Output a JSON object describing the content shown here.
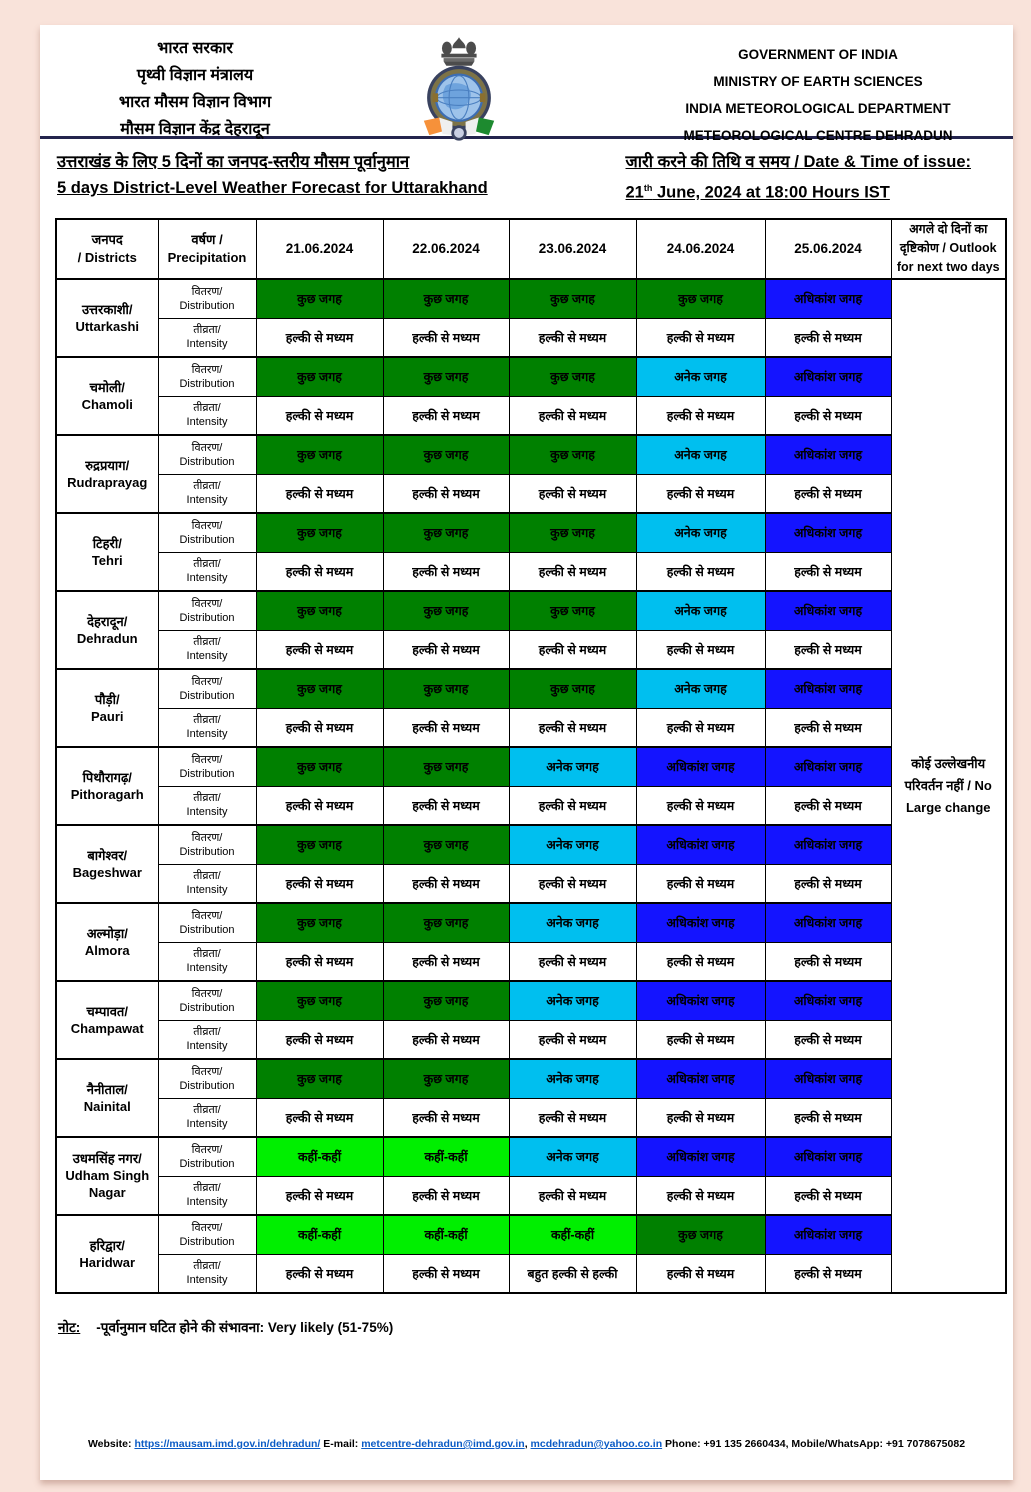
{
  "colors": {
    "page_background": "#f9e3da",
    "paper": "#ffffff",
    "table_border": "#000000",
    "header_rule": "#23244d",
    "link": "#0b5bc5",
    "distribution_some_places": "#008000",
    "distribution_isolated": "#00ef00",
    "distribution_many_places": "#00bfef",
    "distribution_most_places": "#1414ff"
  },
  "header": {
    "left_lines": [
      "भारत सरकार",
      "पृथ्वी विज्ञान मंत्रालय",
      "भारत मौसम विज्ञान विभाग",
      "मौसम विज्ञान केंद्र देहरादून"
    ],
    "right_lines": [
      "GOVERNMENT OF INDIA",
      "MINISTRY OF EARTH SCIENCES",
      "INDIA METEOROLOGICAL DEPARTMENT",
      "METEOROLOGICAL CENTRE DEHRADUN"
    ],
    "logo": "imd-emblem-logo"
  },
  "title": {
    "hindi": "उत्तराखंड के लिए 5 दिनों का जनपद-स्तरीय मौसम पूर्वानुमान",
    "english": "5 days District-Level Weather Forecast for Uttarakhand"
  },
  "issue": {
    "label": "जारी करने की तिथि व समय / Date & Time of issue:",
    "day": "21",
    "day_suffix": "th",
    "rest": " June, 2024 at 18:00 Hours IST"
  },
  "table": {
    "headers": {
      "districts_hi": "जनपद",
      "districts_en": "/ Districts",
      "precipitation_hi": "वर्षण /",
      "precipitation_en": "Precipitation",
      "dates": [
        "21.06.2024",
        "22.06.2024",
        "23.06.2024",
        "24.06.2024",
        "25.06.2024"
      ],
      "outlook": "अगले दो दिनों का दृष्टिकोण / Outlook for next two days"
    },
    "row_labels": {
      "distribution_hi": "वितरण/",
      "distribution_en": "Distribution",
      "intensity_hi": "तीव्रता/",
      "intensity_en": "Intensity"
    },
    "categories": {
      "some": {
        "label": "कुछ जगह",
        "color": "#008000"
      },
      "isolated": {
        "label": "कहीं-कहीं",
        "color": "#00ef00"
      },
      "many": {
        "label": "अनेक जगह",
        "color": "#00bfef"
      },
      "most": {
        "label": "अधिकांश जगह",
        "color": "#1414ff"
      }
    },
    "outlook_note": "कोई उल्लेखनीय परिवर्तन नहीं / No Large change",
    "rows": [
      {
        "hi": "उत्तरकाशी/",
        "en": "Uttarkashi",
        "distribution": [
          "some",
          "some",
          "some",
          "some",
          "most"
        ],
        "intensity": [
          "हल्की से मध्यम",
          "हल्की से मध्यम",
          "हल्की से मध्यम",
          "हल्की से मध्यम",
          "हल्की से मध्यम"
        ]
      },
      {
        "hi": "चमोली/",
        "en": "Chamoli",
        "distribution": [
          "some",
          "some",
          "some",
          "many",
          "most"
        ],
        "intensity": [
          "हल्की से मध्यम",
          "हल्की से मध्यम",
          "हल्की से मध्यम",
          "हल्की से मध्यम",
          "हल्की से मध्यम"
        ]
      },
      {
        "hi": "रुद्रप्रयाग/",
        "en": "Rudraprayag",
        "distribution": [
          "some",
          "some",
          "some",
          "many",
          "most"
        ],
        "intensity": [
          "हल्की से मध्यम",
          "हल्की से मध्यम",
          "हल्की से मध्यम",
          "हल्की से मध्यम",
          "हल्की से मध्यम"
        ]
      },
      {
        "hi": "टिहरी/",
        "en": "Tehri",
        "distribution": [
          "some",
          "some",
          "some",
          "many",
          "most"
        ],
        "intensity": [
          "हल्की से मध्यम",
          "हल्की से मध्यम",
          "हल्की से मध्यम",
          "हल्की से मध्यम",
          "हल्की से मध्यम"
        ]
      },
      {
        "hi": "देहरादून/",
        "en": "Dehradun",
        "distribution": [
          "some",
          "some",
          "some",
          "many",
          "most"
        ],
        "intensity": [
          "हल्की से मध्यम",
          "हल्की से मध्यम",
          "हल्की से मध्यम",
          "हल्की से मध्यम",
          "हल्की से मध्यम"
        ]
      },
      {
        "hi": "पौड़ी/",
        "en": "Pauri",
        "distribution": [
          "some",
          "some",
          "some",
          "many",
          "most"
        ],
        "intensity": [
          "हल्की से मध्यम",
          "हल्की से मध्यम",
          "हल्की से मध्यम",
          "हल्की से मध्यम",
          "हल्की से मध्यम"
        ]
      },
      {
        "hi": "पिथौरागढ़/",
        "en": "Pithoragarh",
        "distribution": [
          "some",
          "some",
          "many",
          "most",
          "most"
        ],
        "intensity": [
          "हल्की से मध्यम",
          "हल्की से मध्यम",
          "हल्की से मध्यम",
          "हल्की से मध्यम",
          "हल्की से मध्यम"
        ]
      },
      {
        "hi": "बागेश्वर/",
        "en": "Bageshwar",
        "distribution": [
          "some",
          "some",
          "many",
          "most",
          "most"
        ],
        "intensity": [
          "हल्की से मध्यम",
          "हल्की से मध्यम",
          "हल्की से मध्यम",
          "हल्की से मध्यम",
          "हल्की से मध्यम"
        ]
      },
      {
        "hi": "अल्मोड़ा/",
        "en": "Almora",
        "distribution": [
          "some",
          "some",
          "many",
          "most",
          "most"
        ],
        "intensity": [
          "हल्की से मध्यम",
          "हल्की से मध्यम",
          "हल्की से मध्यम",
          "हल्की से मध्यम",
          "हल्की से मध्यम"
        ]
      },
      {
        "hi": "चम्पावत/",
        "en": "Champawat",
        "distribution": [
          "some",
          "some",
          "many",
          "most",
          "most"
        ],
        "intensity": [
          "हल्की से मध्यम",
          "हल्की से मध्यम",
          "हल्की से मध्यम",
          "हल्की से मध्यम",
          "हल्की से मध्यम"
        ]
      },
      {
        "hi": "नैनीताल/",
        "en": "Nainital",
        "distribution": [
          "some",
          "some",
          "many",
          "most",
          "most"
        ],
        "intensity": [
          "हल्की से मध्यम",
          "हल्की से मध्यम",
          "हल्की से मध्यम",
          "हल्की से मध्यम",
          "हल्की से मध्यम"
        ]
      },
      {
        "hi": "उधमसिंह नगर/",
        "en": "Udham Singh Nagar",
        "distribution": [
          "isolated",
          "isolated",
          "many",
          "most",
          "most"
        ],
        "intensity": [
          "हल्की से मध्यम",
          "हल्की से मध्यम",
          "हल्की से मध्यम",
          "हल्की से मध्यम",
          "हल्की से मध्यम"
        ]
      },
      {
        "hi": "हरिद्वार/",
        "en": "Haridwar",
        "distribution": [
          "isolated",
          "isolated",
          "isolated",
          "some",
          "most"
        ],
        "intensity": [
          "हल्की से मध्यम",
          "हल्की से मध्यम",
          "बहुत हल्की से हल्की",
          "हल्की से मध्यम",
          "हल्की से मध्यम"
        ]
      }
    ]
  },
  "note": {
    "label": "नोट:",
    "text": "-पूर्वानुमान घटित होने की संभावना: Very likely (51-75%)"
  },
  "footer": {
    "website_label": "Website:",
    "website_url": "https://mausam.imd.gov.in/dehradun/",
    "email_label": "E-mail:",
    "email1": "metcentre-dehradun@imd.gov.in",
    "email1_sep": ",",
    "email2": "mcdehradun@yahoo.co.in",
    "phone_text": "Phone: +91 135 2660434, Mobile/WhatsApp: +91 7078675082"
  }
}
